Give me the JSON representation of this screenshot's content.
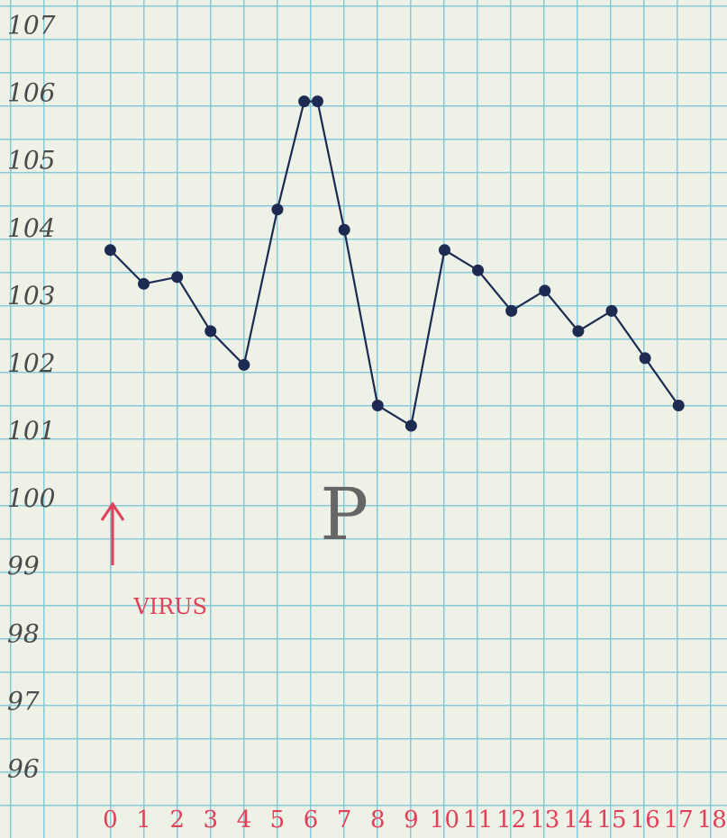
{
  "chart_data": {
    "type": "line",
    "x": [
      0,
      1,
      2,
      3,
      4,
      5,
      5.8,
      6.2,
      7,
      8,
      9,
      10,
      11,
      12,
      13,
      14,
      15,
      16,
      17
    ],
    "series": [
      {
        "color": "#1d2a52",
        "values": [
          103.7,
          103.2,
          103.3,
          102.5,
          102.0,
          104.3,
          105.9,
          105.9,
          104.0,
          101.4,
          101.1,
          103.7,
          103.4,
          102.8,
          103.1,
          102.5,
          102.8,
          102.1,
          101.4
        ]
      }
    ],
    "xlim": [
      -3.3,
      18.45
    ],
    "ylim": [
      95,
      107.4
    ],
    "xticks": [
      0,
      1,
      2,
      3,
      4,
      5,
      6,
      7,
      8,
      9,
      10,
      11,
      12,
      13,
      14,
      15,
      16,
      17,
      18
    ],
    "yticks": [
      96,
      97,
      98,
      99,
      100,
      101,
      102,
      103,
      104,
      105,
      106,
      107
    ],
    "xtick_color": "#e0405a",
    "annotations": [
      {
        "text": "VIRUS",
        "x": 0.7,
        "y": 98.4,
        "color": "#e0405a"
      },
      {
        "text": "P",
        "x": 7,
        "y": 99.7,
        "color": "#666666"
      }
    ]
  }
}
